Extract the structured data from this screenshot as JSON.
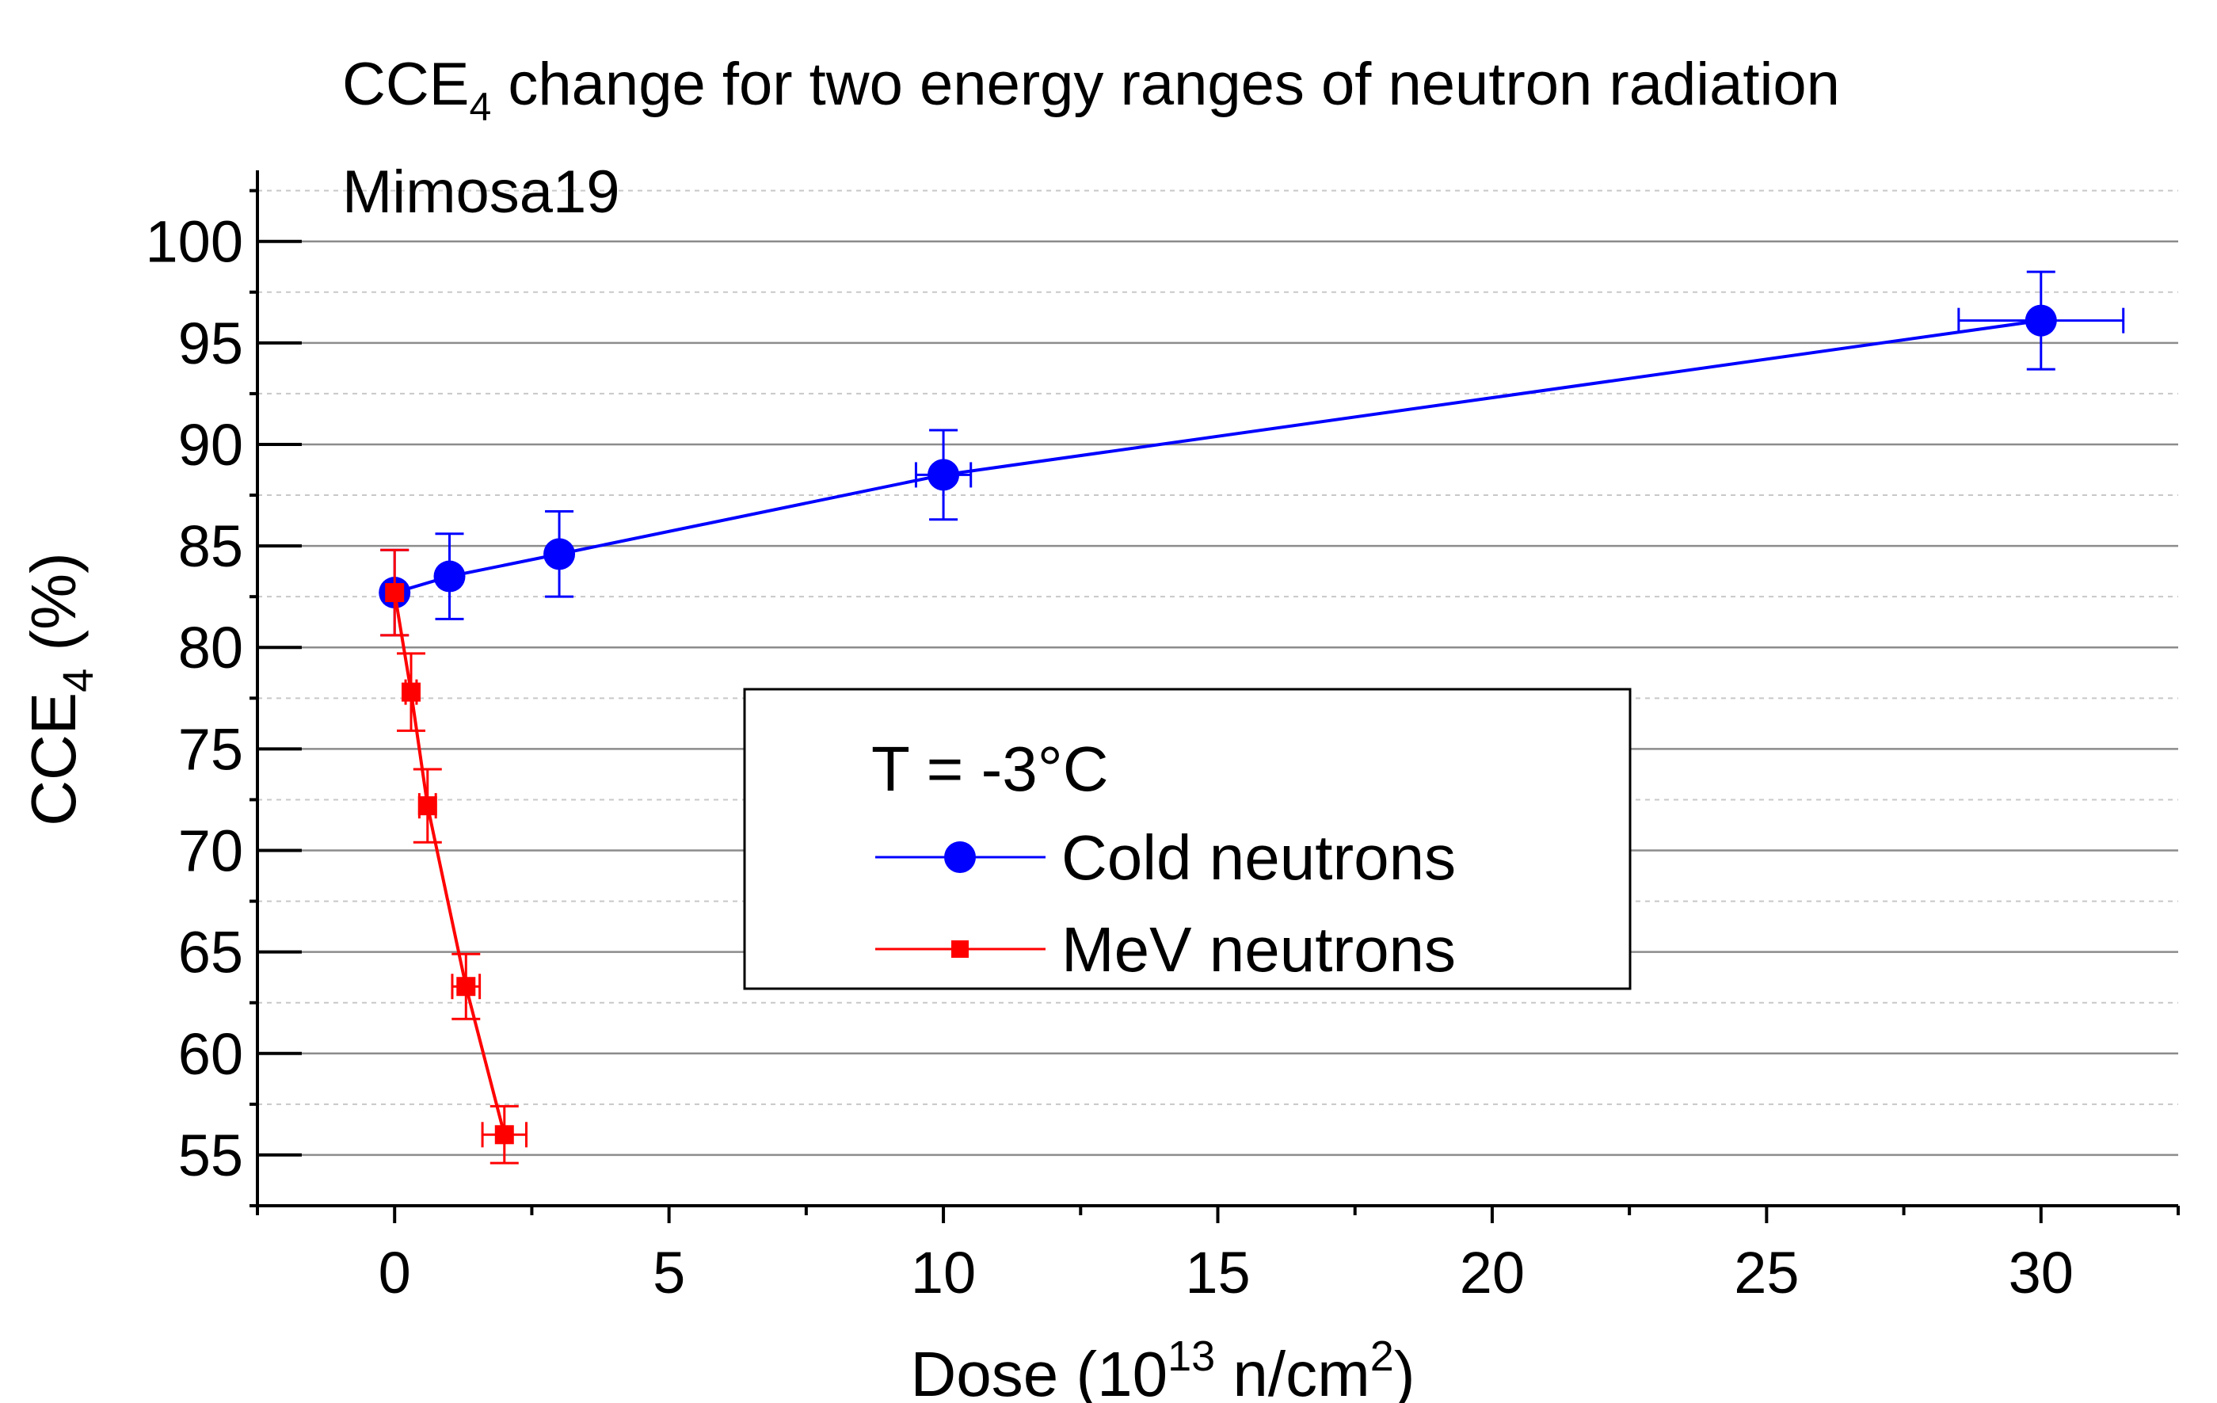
{
  "chart_data": {
    "type": "scatter",
    "title": "CCE",
    "title_sub": "4",
    "title_rest": " change for two energy ranges of neutron radiation",
    "subtitle": "Mimosa19",
    "xlabel_pre": "Dose (10",
    "xlabel_sup": "13",
    "xlabel_mid": " n/cm",
    "xlabel_sup2": "2",
    "xlabel_post": ")",
    "ylabel_pre": "CCE",
    "ylabel_sub": "4",
    "ylabel_post": " (%)",
    "xlim": [
      -2.5,
      32.5
    ],
    "ylim": [
      52.5,
      103.5
    ],
    "x_ticks": [
      0,
      5,
      10,
      15,
      20,
      25,
      30
    ],
    "x_tick_labels": [
      "0",
      "5",
      "10",
      "15",
      "20",
      "25",
      "30"
    ],
    "y_ticks": [
      55,
      60,
      65,
      70,
      75,
      80,
      85,
      90,
      95,
      100
    ],
    "y_tick_labels": [
      "55",
      "60",
      "65",
      "70",
      "75",
      "80",
      "85",
      "90",
      "95",
      "100"
    ],
    "grid": true,
    "legend": {
      "position": "center",
      "header": "T = -3°C",
      "entries": [
        "Cold neutrons",
        "MeV neutrons"
      ]
    },
    "series": [
      {
        "name": "Cold neutrons",
        "color": "#0000ff",
        "marker": "circle",
        "x": [
          0,
          1,
          3,
          10,
          30
        ],
        "y": [
          82.7,
          83.5,
          84.6,
          88.5,
          96.1
        ],
        "x_err": [
          0,
          0,
          0,
          0.5,
          1.5
        ],
        "y_err": [
          2.1,
          2.1,
          2.1,
          2.2,
          2.4
        ]
      },
      {
        "name": "MeV neutrons",
        "color": "#ff0000",
        "marker": "square",
        "x": [
          0,
          0.3,
          0.6,
          1.3,
          2.0
        ],
        "y": [
          82.7,
          77.8,
          72.2,
          63.3,
          56.0
        ],
        "x_err": [
          0,
          0.1,
          0.15,
          0.25,
          0.4
        ],
        "y_err": [
          2.1,
          1.9,
          1.8,
          1.6,
          1.4
        ]
      }
    ]
  }
}
